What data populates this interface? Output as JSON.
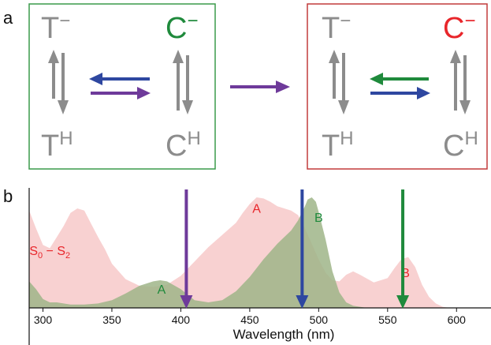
{
  "panels": {
    "a_label": "a",
    "b_label": "b"
  },
  "scheme": {
    "left": {
      "top_left": "T",
      "top_left_sup": "−",
      "top_right": "C",
      "top_right_sup": "−",
      "bottom_left": "T",
      "bottom_left_sup": "H",
      "bottom_right": "C",
      "bottom_right_sup": "H"
    },
    "right": {
      "top_left": "T",
      "top_left_sup": "−",
      "top_right": "C",
      "top_right_sup": "−",
      "bottom_left": "T",
      "bottom_left_sup": "H",
      "bottom_right": "C",
      "bottom_right_sup": "H"
    },
    "colors": {
      "gray": "#8c8c8c",
      "green": "#1f8a3c",
      "red": "#e8262b",
      "blue": "#2e47a0",
      "purple": "#6e3a9a",
      "left_box": "#3a9a4a",
      "right_box": "#c23b3b"
    }
  },
  "chart_data": {
    "type": "area",
    "xlabel": "Wavelength (nm)",
    "xlim": [
      290,
      625
    ],
    "ylim": [
      0,
      1
    ],
    "xticks": [
      300,
      350,
      400,
      450,
      500,
      550,
      600
    ],
    "series": [
      {
        "color": "#f7c9c9",
        "x": [
          290,
          295,
          300,
          305,
          310,
          315,
          320,
          325,
          330,
          335,
          340,
          345,
          350,
          360,
          370,
          380,
          390,
          400,
          410,
          420,
          430,
          440,
          445,
          450,
          455,
          460,
          465,
          470,
          475,
          480,
          485,
          490,
          495,
          500,
          505,
          510,
          515,
          520,
          525,
          530,
          540,
          550,
          555,
          560,
          565,
          570,
          575,
          580,
          585,
          590,
          595,
          600
        ],
        "values": [
          0.88,
          0.72,
          0.57,
          0.54,
          0.64,
          0.74,
          0.86,
          0.9,
          0.88,
          0.76,
          0.64,
          0.53,
          0.4,
          0.26,
          0.2,
          0.19,
          0.21,
          0.29,
          0.42,
          0.55,
          0.66,
          0.77,
          0.86,
          0.94,
          1.0,
          0.99,
          0.96,
          0.92,
          0.9,
          0.88,
          0.84,
          0.72,
          0.58,
          0.44,
          0.32,
          0.25,
          0.24,
          0.3,
          0.33,
          0.3,
          0.23,
          0.27,
          0.36,
          0.44,
          0.46,
          0.37,
          0.21,
          0.1,
          0.04,
          0.01,
          0.0,
          0.0
        ]
      },
      {
        "color": "#9fb588",
        "x": [
          290,
          295,
          300,
          305,
          310,
          320,
          330,
          340,
          350,
          360,
          370,
          380,
          385,
          390,
          400,
          410,
          420,
          430,
          440,
          450,
          460,
          470,
          475,
          480,
          485,
          490,
          492,
          495,
          498,
          500,
          505,
          510,
          515,
          520,
          525,
          530,
          535,
          540
        ],
        "values": [
          0.24,
          0.17,
          0.08,
          0.05,
          0.05,
          0.03,
          0.03,
          0.04,
          0.07,
          0.13,
          0.2,
          0.24,
          0.25,
          0.24,
          0.17,
          0.07,
          0.05,
          0.07,
          0.15,
          0.28,
          0.44,
          0.58,
          0.64,
          0.7,
          0.79,
          0.92,
          0.98,
          1.0,
          0.96,
          0.87,
          0.62,
          0.33,
          0.14,
          0.05,
          0.02,
          0.01,
          0.0,
          0.0
        ]
      }
    ],
    "band_labels": [
      {
        "text": "A",
        "x": 455,
        "y": 0.86,
        "color": "#e8262b"
      },
      {
        "text": "B",
        "x": 500,
        "y": 0.78,
        "color": "#1f8a3c"
      },
      {
        "text": "B",
        "x": 563,
        "y": 0.28,
        "color": "#e8262b"
      },
      {
        "text": "A",
        "x": 386,
        "y": 0.13,
        "color": "#1f8a3c"
      },
      {
        "text": "S",
        "sub": "0",
        "text2": " − S",
        "sub2": "2",
        "x": 305,
        "y": 0.48,
        "color": "#e8262b"
      }
    ],
    "excitation_arrows": [
      {
        "x": 404,
        "color": "#6e3a9a"
      },
      {
        "x": 488,
        "color": "#2e47a0"
      },
      {
        "x": 561,
        "color": "#1f8a3c"
      }
    ]
  }
}
